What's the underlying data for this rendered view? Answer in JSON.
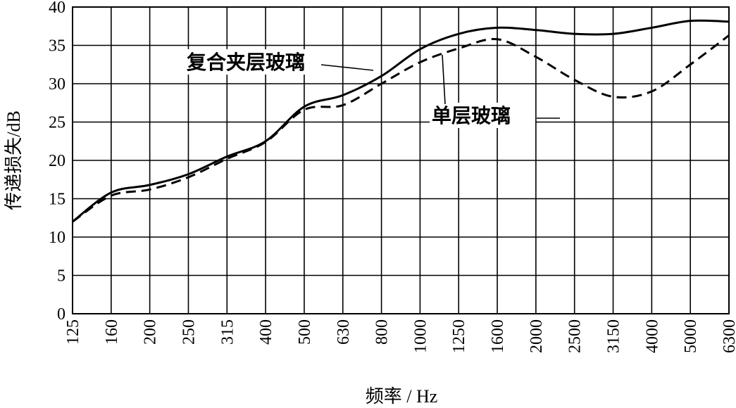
{
  "chart_data": {
    "type": "line",
    "title": "",
    "xlabel": "频率 / Hz",
    "ylabel": "传递损失/dB",
    "x_scale": "log (1/3-octave bands)",
    "categories": [
      "125",
      "160",
      "200",
      "250",
      "315",
      "400",
      "500",
      "630",
      "800",
      "1000",
      "1250",
      "1600",
      "2000",
      "2500",
      "3150",
      "4000",
      "5000",
      "6300"
    ],
    "y_ticks": [
      "0",
      "5",
      "10",
      "15",
      "20",
      "25",
      "30",
      "35",
      "40"
    ],
    "ylim": [
      0,
      40
    ],
    "grid": true,
    "series": [
      {
        "name": "复合夹层玻璃",
        "style": "solid",
        "values": [
          12,
          15.8,
          16.8,
          18.2,
          20.5,
          22.5,
          27,
          28.5,
          31,
          34.5,
          36.5,
          37.3,
          37,
          36.5,
          36.5,
          37.3,
          38.2,
          38.1
        ]
      },
      {
        "name": "单层玻璃",
        "style": "dashed",
        "values": [
          12,
          15.4,
          16.2,
          17.8,
          20.2,
          22.4,
          26.6,
          27.2,
          30,
          32.8,
          34.6,
          35.8,
          33.5,
          30.5,
          28.3,
          29,
          32.5,
          36.3
        ]
      }
    ]
  }
}
